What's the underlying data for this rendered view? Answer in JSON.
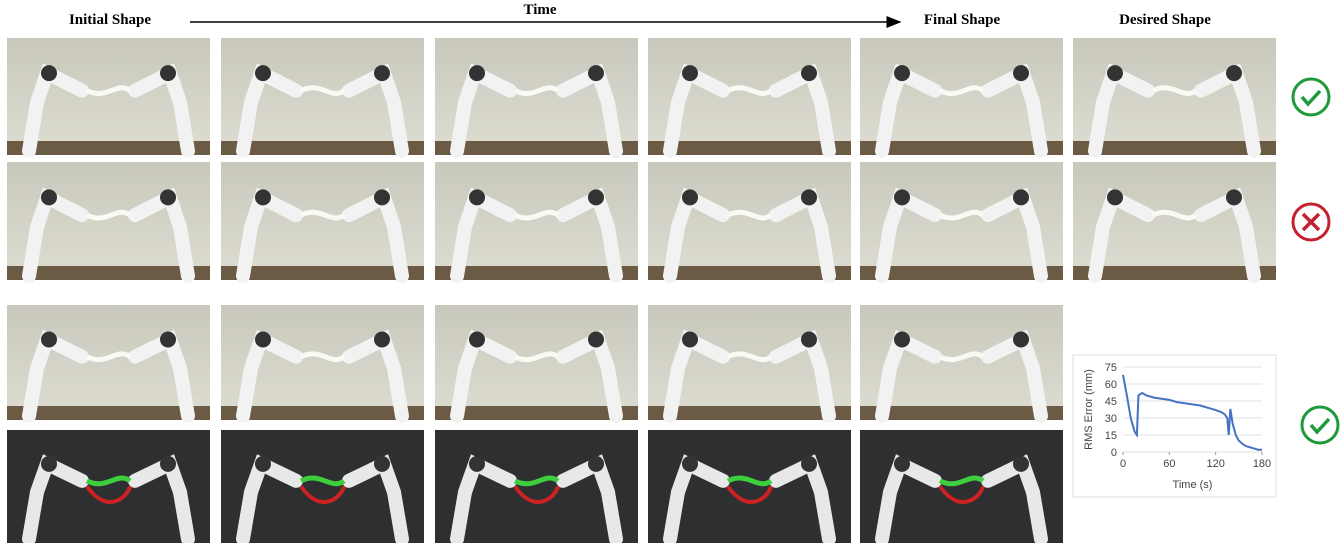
{
  "header": {
    "initial": "Initial Shape",
    "time": "Time",
    "final": "Final Shape",
    "desired": "Desired Shape"
  },
  "chart_data": {
    "type": "line",
    "y_label": "RMS Error (mm)",
    "x_label": "Time (s)",
    "x": [
      0,
      5,
      10,
      15,
      18,
      20,
      25,
      30,
      40,
      50,
      60,
      70,
      80,
      90,
      100,
      110,
      120,
      128,
      132,
      135,
      137,
      139,
      142,
      146,
      150,
      155,
      160,
      165,
      170,
      175,
      180
    ],
    "series": [
      {
        "name": "RMS Error",
        "color": "#4472c4",
        "values": [
          68,
          50,
          30,
          18,
          15,
          50,
          52,
          50,
          48,
          47,
          46,
          44,
          43,
          42,
          41,
          39,
          37,
          35,
          33,
          30,
          15,
          38,
          25,
          15,
          10,
          7,
          5,
          4,
          3,
          2,
          2
        ]
      }
    ],
    "xlim": [
      0,
      180
    ],
    "ylim": [
      0,
      75
    ],
    "xticks": [
      0,
      60,
      120,
      180
    ],
    "yticks": [
      0,
      15,
      30,
      45,
      60,
      75
    ],
    "grid": true
  }
}
